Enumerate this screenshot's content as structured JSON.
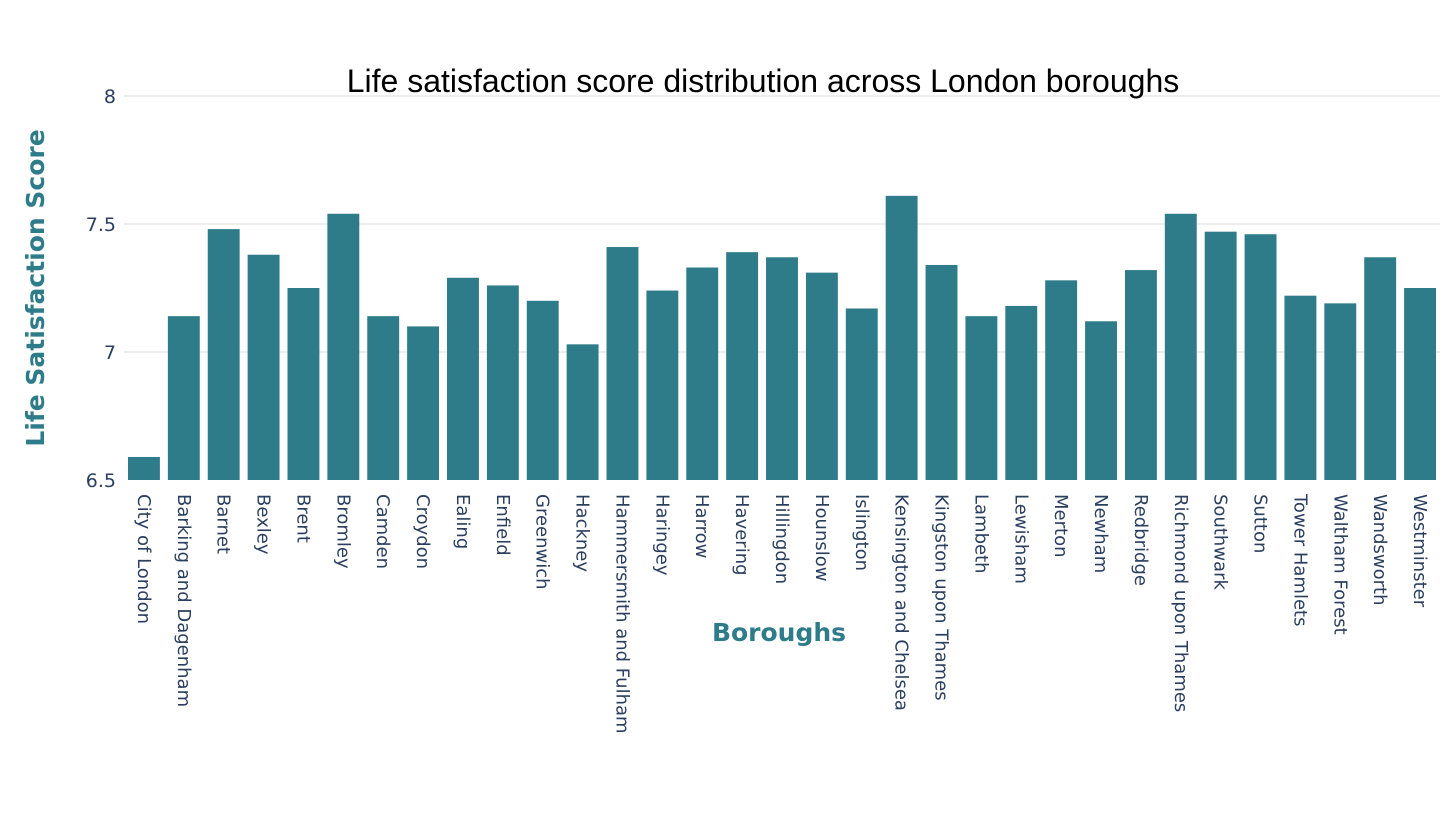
{
  "chart_data": {
    "type": "bar",
    "title": "Life satisfaction score distribution across London boroughs",
    "xlabel": "Boroughs",
    "ylabel": "Life Satisfaction Score",
    "ylim": [
      6.5,
      8
    ],
    "yticks": [
      6.5,
      7,
      7.5,
      8
    ],
    "ytick_labels": [
      "6.5",
      "7",
      "7.5",
      "8"
    ],
    "grid": true,
    "bar_color": "#2e7b8a",
    "axis_title_color": "#2e7b8a",
    "categories": [
      "City of London",
      "Barking and Dagenham",
      "Barnet",
      "Bexley",
      "Brent",
      "Bromley",
      "Camden",
      "Croydon",
      "Ealing",
      "Enfield",
      "Greenwich",
      "Hackney",
      "Hammersmith and Fulham",
      "Haringey",
      "Harrow",
      "Havering",
      "Hillingdon",
      "Hounslow",
      "Islington",
      "Kensington and Chelsea",
      "Kingston upon Thames",
      "Lambeth",
      "Lewisham",
      "Merton",
      "Newham",
      "Redbridge",
      "Richmond upon Thames",
      "Southwark",
      "Sutton",
      "Tower Hamlets",
      "Waltham Forest",
      "Wandsworth",
      "Westminster"
    ],
    "values": [
      6.59,
      7.14,
      7.48,
      7.38,
      7.25,
      7.54,
      7.14,
      7.1,
      7.29,
      7.26,
      7.2,
      7.03,
      7.41,
      7.24,
      7.33,
      7.39,
      7.37,
      7.31,
      7.17,
      7.61,
      7.34,
      7.14,
      7.18,
      7.28,
      7.12,
      7.32,
      7.54,
      7.47,
      7.46,
      7.22,
      7.19,
      7.37,
      7.25
    ]
  }
}
